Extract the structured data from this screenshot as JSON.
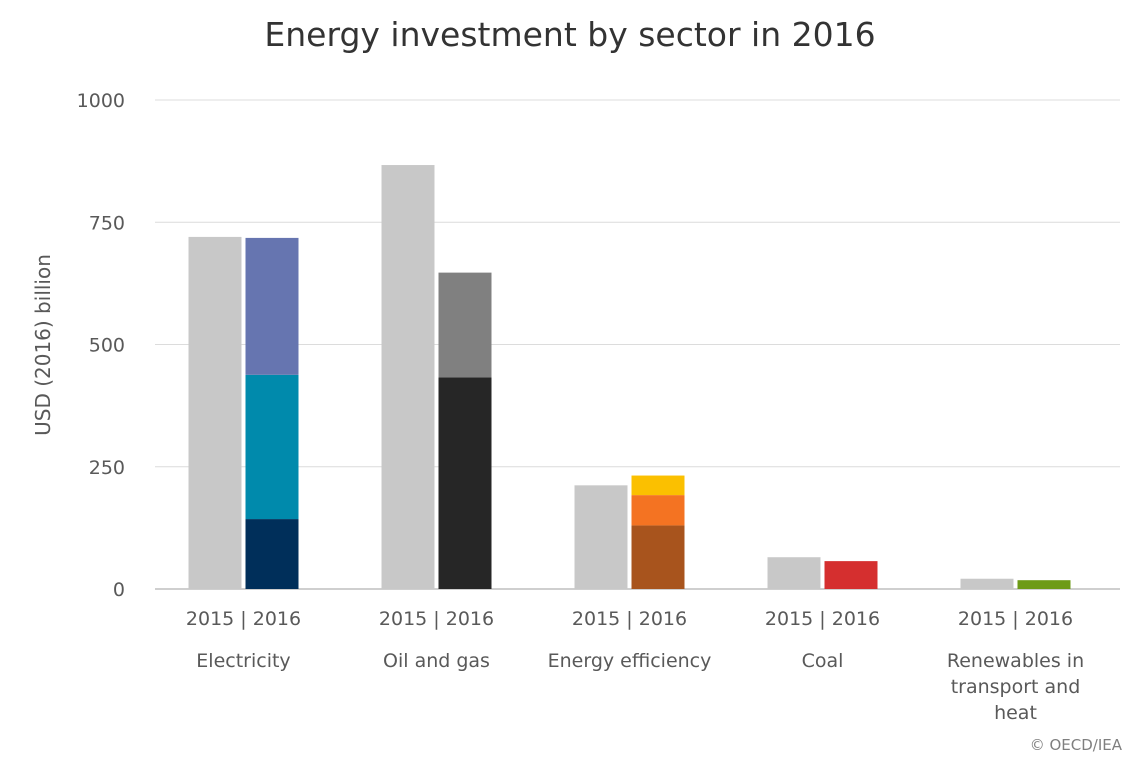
{
  "chart_data": {
    "type": "bar",
    "stacked": true,
    "title": "Energy investment by sector in 2016",
    "ylabel": "USD (2016) billion",
    "xlabel": "",
    "ylim": [
      0,
      1000
    ],
    "yticks": [
      0,
      250,
      500,
      750,
      1000
    ],
    "grid": true,
    "year_label": "2015 | 2016",
    "credit": "© OECD/IEA",
    "categories": [
      {
        "name": "Electricity",
        "label_lines": [
          "Electricity"
        ],
        "value_2015": 720,
        "color_2015": "#c8c8c8",
        "segments_2016": [
          {
            "value": 143,
            "color": "#002f5a"
          },
          {
            "value": 295,
            "color": "#008aac"
          },
          {
            "value": 280,
            "color": "#6675b0"
          }
        ]
      },
      {
        "name": "Oil and gas",
        "label_lines": [
          "Oil and gas"
        ],
        "value_2015": 867,
        "color_2015": "#c8c8c8",
        "segments_2016": [
          {
            "value": 433,
            "color": "#262626"
          },
          {
            "value": 214,
            "color": "#808080"
          }
        ]
      },
      {
        "name": "Energy efficiency",
        "label_lines": [
          "Energy efficiency"
        ],
        "value_2015": 212,
        "color_2015": "#c8c8c8",
        "segments_2016": [
          {
            "value": 130,
            "color": "#a8541d"
          },
          {
            "value": 62,
            "color": "#f47322"
          },
          {
            "value": 40,
            "color": "#fbc000"
          }
        ]
      },
      {
        "name": "Coal",
        "label_lines": [
          "Coal"
        ],
        "value_2015": 65,
        "color_2015": "#c8c8c8",
        "segments_2016": [
          {
            "value": 57,
            "color": "#d52f2f"
          }
        ]
      },
      {
        "name": "Renewables in transport and heat",
        "label_lines": [
          "Renewables in",
          "transport and",
          "heat"
        ],
        "value_2015": 21,
        "color_2015": "#c8c8c8",
        "segments_2016": [
          {
            "value": 18,
            "color": "#6e9b17"
          }
        ]
      }
    ]
  }
}
